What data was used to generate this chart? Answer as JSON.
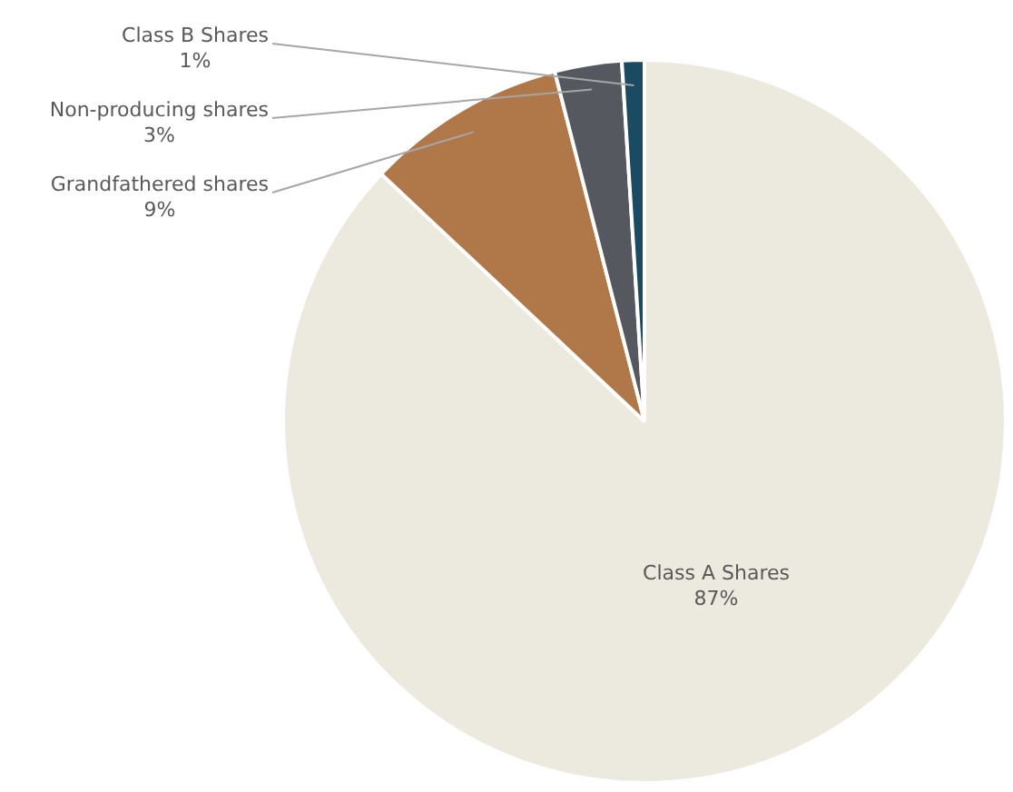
{
  "chart_data": {
    "type": "pie",
    "categories": [
      "Class A Shares",
      "Grandfathered shares",
      "Non-producing shares",
      "Class B Shares"
    ],
    "values": [
      87,
      9,
      3,
      1
    ],
    "colors": [
      "#ece9df",
      "#b07848",
      "#55585e",
      "#1b4a63"
    ],
    "value_labels": [
      "87%",
      "9%",
      "3%",
      "1%"
    ],
    "legend": false
  }
}
